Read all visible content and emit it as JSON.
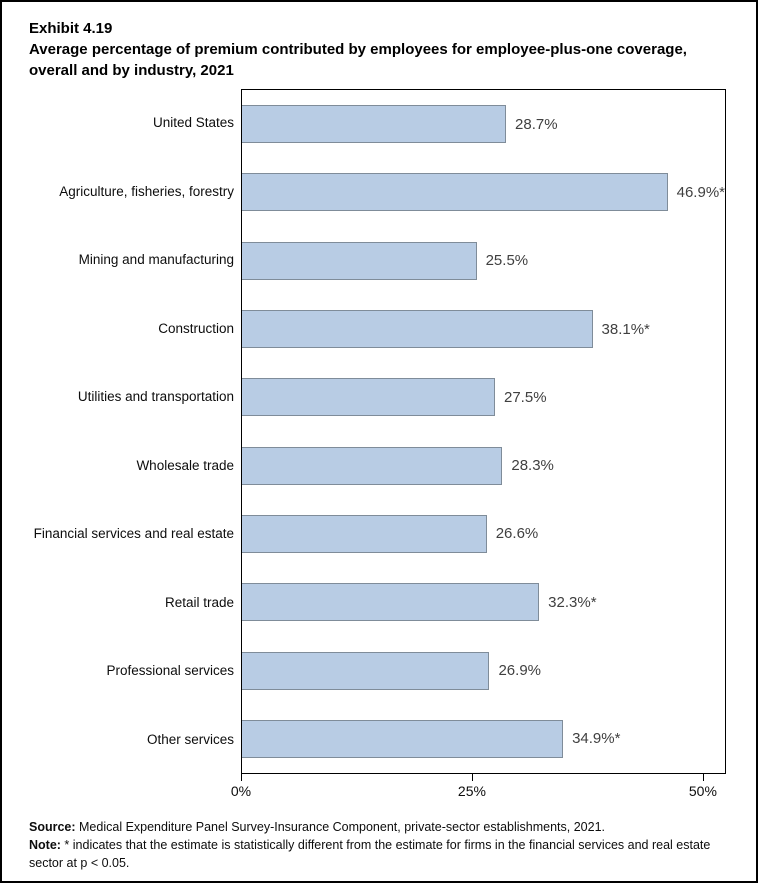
{
  "header": {
    "exhibit": "Exhibit 4.19",
    "title": "Average percentage of premium contributed by employees for employee-plus-one coverage, overall and by industry, 2021"
  },
  "chart_data": {
    "type": "bar",
    "orientation": "horizontal",
    "title": "Average percentage of premium contributed by employees for employee-plus-one coverage, overall and by industry, 2021",
    "categories": [
      "United States",
      "Agriculture, fisheries, forestry",
      "Mining and manufacturing",
      "Construction",
      "Utilities and transportation",
      "Wholesale trade",
      "Financial services and real estate",
      "Retail trade",
      "Professional services",
      "Other services"
    ],
    "values": [
      28.7,
      46.9,
      25.5,
      38.1,
      27.5,
      28.3,
      26.6,
      32.3,
      26.9,
      34.9
    ],
    "value_labels": [
      "28.7%",
      "46.9%*",
      "25.5%",
      "38.1%*",
      "27.5%",
      "28.3%",
      "26.6%",
      "32.3%*",
      "26.9%",
      "34.9%*"
    ],
    "xlabel": "",
    "ylabel": "",
    "xlim": [
      0,
      52.5
    ],
    "xticks": [
      {
        "value": 0,
        "label": "0%"
      },
      {
        "value": 25,
        "label": "25%"
      },
      {
        "value": 50,
        "label": "50%"
      }
    ],
    "grid": false,
    "legend": false,
    "colors": {
      "bar_fill": "#b8cce4",
      "bar_border": "#7f8c99",
      "value_label": "#404040",
      "text": "#0d0d0d"
    }
  },
  "footer": {
    "source_label": "Source:",
    "source_text": " Medical Expenditure Panel Survey-Insurance Component, private-sector establishments, 2021.",
    "note_label": "Note:",
    "note_text": "  * indicates that the estimate is statistically different from the estimate for firms in the financial services and real estate sector at p < 0.05."
  }
}
